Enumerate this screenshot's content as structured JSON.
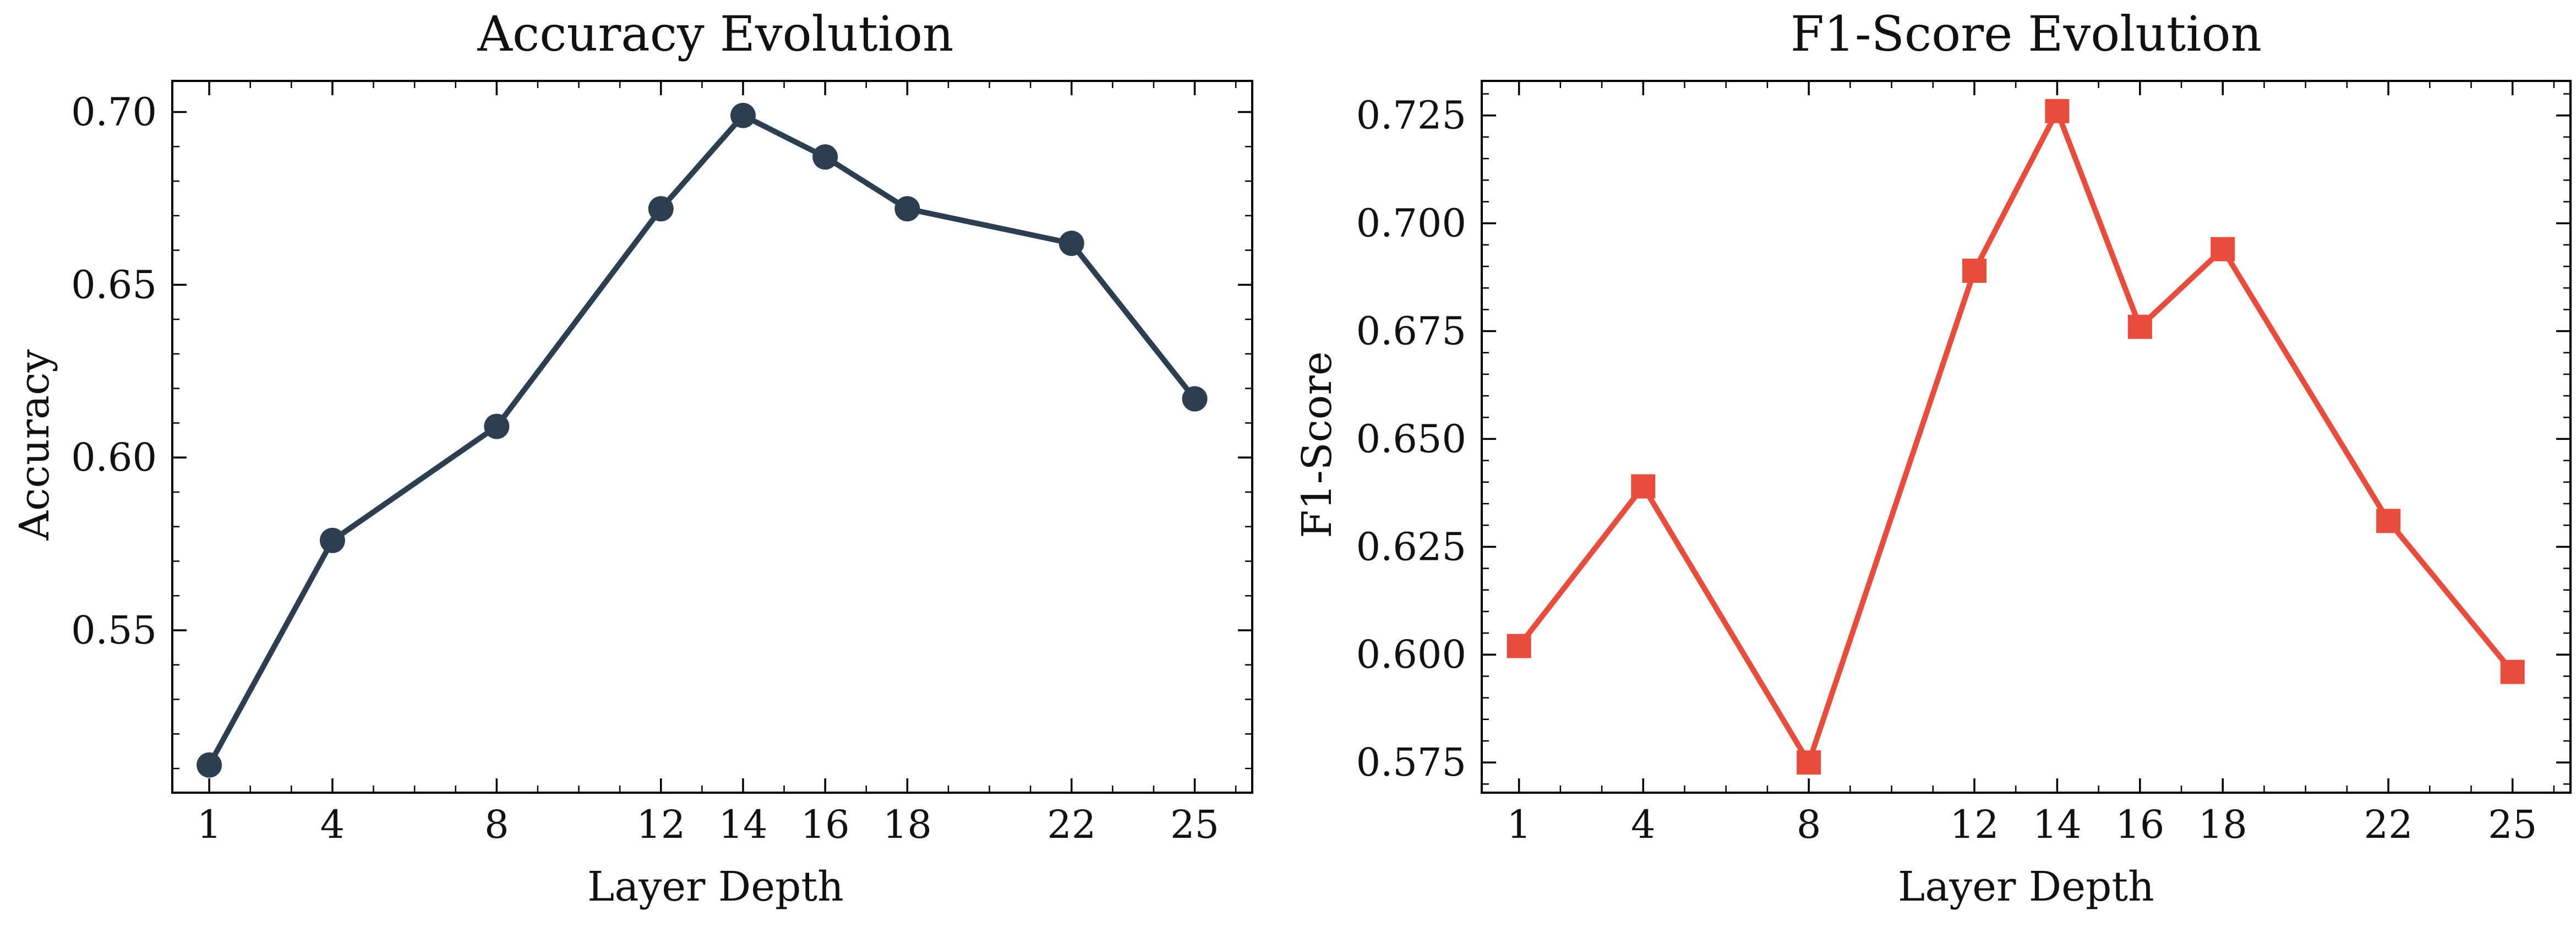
{
  "chart_data": [
    {
      "type": "line",
      "title": "Accuracy Evolution",
      "xlabel": "Layer Depth",
      "ylabel": "Accuracy",
      "x": [
        1,
        4,
        8,
        12,
        14,
        16,
        18,
        22,
        25
      ],
      "xticks": [
        1,
        4,
        8,
        12,
        14,
        16,
        18,
        22,
        25
      ],
      "xlim": [
        0.1,
        26.4
      ],
      "ylim": [
        0.503,
        0.709
      ],
      "yticks": [
        0.55,
        0.6,
        0.65,
        0.7
      ],
      "yticklabels": [
        "0.55",
        "0.60",
        "0.65",
        "0.70"
      ],
      "yminor_step": 0.01,
      "series": [
        {
          "name": "Accuracy",
          "values": [
            0.511,
            0.576,
            0.609,
            0.672,
            0.699,
            0.687,
            0.672,
            0.662,
            0.617
          ],
          "color": "#2c3e50",
          "marker": "circle"
        }
      ],
      "grid": false
    },
    {
      "type": "line",
      "title": "F1-Score Evolution",
      "xlabel": "Layer Depth",
      "ylabel": "F1-Score",
      "x": [
        1,
        4,
        8,
        12,
        14,
        16,
        18,
        22,
        25
      ],
      "xticks": [
        1,
        4,
        8,
        12,
        14,
        16,
        18,
        22,
        25
      ],
      "xlim": [
        0.1,
        26.4
      ],
      "ylim": [
        0.568,
        0.733
      ],
      "yticks": [
        0.575,
        0.6,
        0.625,
        0.65,
        0.675,
        0.7,
        0.725
      ],
      "yticklabels": [
        "0.575",
        "0.600",
        "0.625",
        "0.650",
        "0.675",
        "0.700",
        "0.725"
      ],
      "yminor_step": 0.005,
      "series": [
        {
          "name": "F1-Score",
          "values": [
            0.602,
            0.639,
            0.575,
            0.689,
            0.726,
            0.676,
            0.694,
            0.631,
            0.596
          ],
          "color": "#e74c3c",
          "marker": "square"
        }
      ],
      "grid": false
    }
  ]
}
